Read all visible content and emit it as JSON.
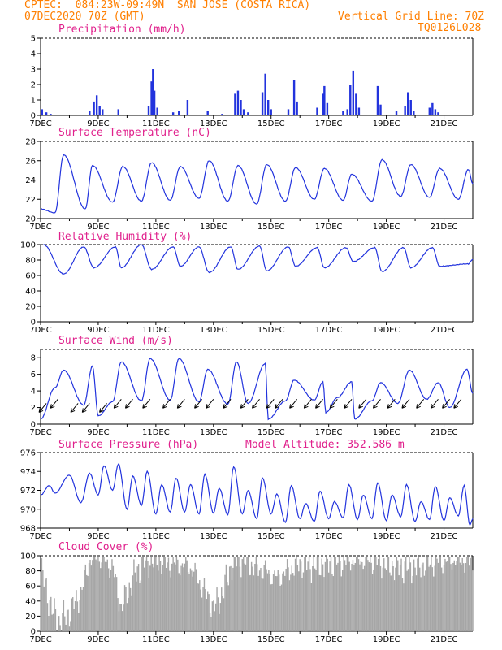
{
  "header": {
    "line1": "CPTEC:  084:23W-09:49N  SAN JOSE (COSTA RICA)",
    "line2_left": "07DEC2020 70Z (GMT)",
    "line2_right": "Vertical Grid Line: 70Z",
    "line3_right": "TQ0126L028"
  },
  "colors": {
    "header": "#ff7f00",
    "title": "#e0208c",
    "series": "#2233dd",
    "cloud": "#a6a6a6"
  },
  "chart_data": [
    {
      "type": "bar",
      "title": "Precipitation (mm/h)",
      "x_ticks": [
        "7DEC",
        "9DEC",
        "11DEC",
        "13DEC",
        "15DEC",
        "17DEC",
        "19DEC",
        "21DEC"
      ],
      "y_ticks": [
        0,
        1,
        2,
        3,
        4,
        5
      ],
      "ylim": [
        0,
        5
      ],
      "bars": [
        {
          "day": 7.05,
          "value": 0.4
        },
        {
          "day": 7.2,
          "value": 0.2
        },
        {
          "day": 7.35,
          "value": 0.1
        },
        {
          "day": 8.7,
          "value": 0.3
        },
        {
          "day": 8.85,
          "value": 0.9
        },
        {
          "day": 8.95,
          "value": 1.3
        },
        {
          "day": 9.05,
          "value": 0.6
        },
        {
          "day": 9.15,
          "value": 0.4
        },
        {
          "day": 9.7,
          "value": 0.4
        },
        {
          "day": 10.75,
          "value": 0.6
        },
        {
          "day": 10.85,
          "value": 2.2
        },
        {
          "day": 10.9,
          "value": 3.0
        },
        {
          "day": 10.95,
          "value": 1.6
        },
        {
          "day": 11.05,
          "value": 0.5
        },
        {
          "day": 11.6,
          "value": 0.2
        },
        {
          "day": 11.8,
          "value": 0.3
        },
        {
          "day": 12.1,
          "value": 1.0
        },
        {
          "day": 12.8,
          "value": 0.3
        },
        {
          "day": 13.3,
          "value": 0.1
        },
        {
          "day": 13.75,
          "value": 1.4
        },
        {
          "day": 13.85,
          "value": 1.6
        },
        {
          "day": 13.95,
          "value": 1.0
        },
        {
          "day": 14.05,
          "value": 0.4
        },
        {
          "day": 14.2,
          "value": 0.2
        },
        {
          "day": 14.7,
          "value": 1.5
        },
        {
          "day": 14.8,
          "value": 2.7
        },
        {
          "day": 14.9,
          "value": 1.0
        },
        {
          "day": 15.0,
          "value": 0.4
        },
        {
          "day": 15.6,
          "value": 0.4
        },
        {
          "day": 15.8,
          "value": 2.3
        },
        {
          "day": 15.9,
          "value": 0.9
        },
        {
          "day": 16.6,
          "value": 0.5
        },
        {
          "day": 16.8,
          "value": 1.4
        },
        {
          "day": 16.85,
          "value": 1.9
        },
        {
          "day": 16.95,
          "value": 0.8
        },
        {
          "day": 17.5,
          "value": 0.3
        },
        {
          "day": 17.65,
          "value": 0.4
        },
        {
          "day": 17.75,
          "value": 2.0
        },
        {
          "day": 17.85,
          "value": 2.9
        },
        {
          "day": 17.95,
          "value": 1.4
        },
        {
          "day": 18.05,
          "value": 0.5
        },
        {
          "day": 18.7,
          "value": 1.9
        },
        {
          "day": 18.8,
          "value": 0.7
        },
        {
          "day": 19.35,
          "value": 0.3
        },
        {
          "day": 19.65,
          "value": 0.6
        },
        {
          "day": 19.75,
          "value": 1.5
        },
        {
          "day": 19.85,
          "value": 1.0
        },
        {
          "day": 19.95,
          "value": 0.3
        },
        {
          "day": 20.5,
          "value": 0.5
        },
        {
          "day": 20.6,
          "value": 0.8
        },
        {
          "day": 20.7,
          "value": 0.4
        },
        {
          "day": 20.8,
          "value": 0.2
        }
      ]
    },
    {
      "type": "line",
      "title": "Surface Temperature (nC)",
      "x_ticks": [
        "7DEC",
        "9DEC",
        "11DEC",
        "13DEC",
        "15DEC",
        "17DEC",
        "19DEC",
        "21DEC"
      ],
      "y_ticks": [
        20,
        22,
        24,
        26,
        28
      ],
      "ylim": [
        20,
        28
      ],
      "peaks": [
        [
          7.8,
          26.6
        ],
        [
          8.8,
          25.5
        ],
        [
          9.85,
          25.4
        ],
        [
          10.85,
          25.8
        ],
        [
          11.85,
          25.4
        ],
        [
          12.85,
          26.0
        ],
        [
          13.85,
          25.5
        ],
        [
          14.85,
          25.6
        ],
        [
          15.85,
          25.3
        ],
        [
          16.85,
          25.2
        ],
        [
          17.8,
          24.6
        ],
        [
          18.85,
          26.1
        ],
        [
          19.85,
          25.6
        ],
        [
          20.85,
          25.2
        ],
        [
          21.85,
          25.1
        ]
      ],
      "troughs": [
        [
          7.0,
          21.0
        ],
        [
          7.5,
          20.6
        ],
        [
          8.55,
          21.0
        ],
        [
          9.5,
          21.7
        ],
        [
          10.5,
          21.8
        ],
        [
          11.5,
          21.9
        ],
        [
          12.5,
          22.1
        ],
        [
          13.5,
          21.8
        ],
        [
          14.5,
          21.5
        ],
        [
          15.5,
          21.8
        ],
        [
          16.5,
          22.0
        ],
        [
          17.5,
          21.9
        ],
        [
          18.5,
          21.8
        ],
        [
          19.5,
          22.3
        ],
        [
          20.5,
          22.2
        ],
        [
          21.5,
          22.0
        ],
        [
          22.0,
          23.6
        ]
      ]
    },
    {
      "type": "line",
      "title": "Relative Humidity (%)",
      "x_ticks": [
        "7DEC",
        "9DEC",
        "11DEC",
        "13DEC",
        "15DEC",
        "17DEC",
        "19DEC",
        "21DEC"
      ],
      "y_ticks": [
        0,
        20,
        40,
        60,
        80,
        100
      ],
      "ylim": [
        0,
        100
      ],
      "peaks": [
        [
          7.1,
          100
        ],
        [
          8.5,
          97
        ],
        [
          9.6,
          97
        ],
        [
          10.5,
          100
        ],
        [
          11.6,
          97
        ],
        [
          12.5,
          97
        ],
        [
          13.6,
          97
        ],
        [
          14.6,
          98
        ],
        [
          15.6,
          97
        ],
        [
          16.6,
          96
        ],
        [
          17.6,
          96
        ],
        [
          18.6,
          96
        ],
        [
          19.6,
          96
        ],
        [
          20.6,
          96
        ],
        [
          22.0,
          81
        ]
      ],
      "troughs": [
        [
          7.8,
          62
        ],
        [
          8.85,
          70
        ],
        [
          9.8,
          70
        ],
        [
          10.85,
          68
        ],
        [
          11.85,
          72
        ],
        [
          12.85,
          64
        ],
        [
          13.85,
          68
        ],
        [
          14.85,
          66
        ],
        [
          15.85,
          72
        ],
        [
          16.85,
          70
        ],
        [
          17.85,
          78
        ],
        [
          18.85,
          65
        ],
        [
          19.85,
          70
        ],
        [
          20.85,
          72
        ],
        [
          21.85,
          75
        ]
      ]
    },
    {
      "type": "line",
      "title": "Surface Wind (m/s)",
      "x_ticks": [
        "7DEC",
        "9DEC",
        "11DEC",
        "13DEC",
        "15DEC",
        "17DEC",
        "19DEC",
        "21DEC"
      ],
      "y_ticks": [
        0,
        2,
        4,
        6,
        8
      ],
      "ylim": [
        0,
        9
      ],
      "peaks": [
        [
          7.8,
          6.5
        ],
        [
          8.8,
          7.0
        ],
        [
          9.8,
          7.5
        ],
        [
          10.8,
          7.9
        ],
        [
          11.8,
          7.9
        ],
        [
          12.8,
          6.6
        ],
        [
          13.8,
          7.5
        ],
        [
          14.8,
          7.3
        ],
        [
          15.8,
          5.3
        ],
        [
          16.8,
          5.1
        ],
        [
          17.8,
          5.1
        ],
        [
          18.8,
          5.0
        ],
        [
          19.8,
          6.5
        ],
        [
          20.8,
          5.0
        ],
        [
          21.8,
          6.6
        ]
      ],
      "troughs": [
        [
          7.0,
          0.6
        ],
        [
          7.5,
          4.4
        ],
        [
          8.5,
          2.3
        ],
        [
          9.0,
          1.0
        ],
        [
          9.5,
          2.7
        ],
        [
          10.5,
          2.8
        ],
        [
          11.5,
          2.9
        ],
        [
          12.5,
          2.7
        ],
        [
          13.5,
          2.4
        ],
        [
          14.2,
          2.5
        ],
        [
          14.9,
          0.6
        ],
        [
          15.5,
          2.8
        ],
        [
          16.5,
          2.9
        ],
        [
          16.9,
          1.4
        ],
        [
          17.3,
          3.2
        ],
        [
          17.9,
          0.6
        ],
        [
          18.5,
          2.8
        ],
        [
          19.4,
          2.5
        ],
        [
          20.4,
          3.0
        ],
        [
          21.2,
          2.0
        ],
        [
          22.0,
          3.7
        ]
      ],
      "arrows": [
        [
          7.2,
          2.5
        ],
        [
          7.6,
          3.0
        ],
        [
          8.3,
          2.5
        ],
        [
          8.7,
          2.5
        ],
        [
          9.3,
          2.5
        ],
        [
          9.8,
          3.0
        ],
        [
          10.2,
          3.0
        ],
        [
          10.8,
          3.0
        ],
        [
          11.5,
          3.0
        ],
        [
          12.0,
          3.0
        ],
        [
          12.6,
          3.0
        ],
        [
          13.0,
          3.0
        ],
        [
          13.6,
          3.0
        ],
        [
          14.2,
          3.0
        ],
        [
          14.6,
          3.0
        ],
        [
          15.1,
          3.0
        ],
        [
          15.4,
          3.0
        ],
        [
          15.9,
          3.0
        ],
        [
          16.4,
          3.0
        ],
        [
          16.8,
          3.0
        ],
        [
          17.3,
          3.0
        ],
        [
          17.8,
          3.0
        ],
        [
          18.3,
          3.0
        ],
        [
          18.8,
          3.0
        ],
        [
          19.3,
          3.0
        ],
        [
          19.8,
          3.0
        ],
        [
          20.3,
          3.0
        ],
        [
          20.8,
          3.0
        ],
        [
          21.2,
          3.0
        ],
        [
          21.6,
          3.0
        ]
      ]
    },
    {
      "type": "line",
      "title": "Surface Pressure (hPa)",
      "annotation": "Model Altitude: 352.586 m",
      "x_ticks": [
        "7DEC",
        "9DEC",
        "11DEC",
        "13DEC",
        "15DEC",
        "17DEC",
        "19DEC",
        "21DEC"
      ],
      "y_ticks": [
        968,
        970,
        972,
        974,
        976
      ],
      "ylim": [
        968,
        976
      ],
      "peaks": [
        [
          7.3,
          972.5
        ],
        [
          8.0,
          973.6
        ],
        [
          8.7,
          973.8
        ],
        [
          9.2,
          974.6
        ],
        [
          9.7,
          974.8
        ],
        [
          10.2,
          973.5
        ],
        [
          10.7,
          974.0
        ],
        [
          11.2,
          972.6
        ],
        [
          11.7,
          973.3
        ],
        [
          12.2,
          972.6
        ],
        [
          12.7,
          973.7
        ],
        [
          13.2,
          972.2
        ],
        [
          13.7,
          974.5
        ],
        [
          14.2,
          972.0
        ],
        [
          14.7,
          973.3
        ],
        [
          15.2,
          971.6
        ],
        [
          15.7,
          972.5
        ],
        [
          16.2,
          970.6
        ],
        [
          16.7,
          971.9
        ],
        [
          17.2,
          970.8
        ],
        [
          17.7,
          972.6
        ],
        [
          18.2,
          971.5
        ],
        [
          18.7,
          972.8
        ],
        [
          19.2,
          971.5
        ],
        [
          19.7,
          972.6
        ],
        [
          20.2,
          970.8
        ],
        [
          20.7,
          972.4
        ],
        [
          21.2,
          971.2
        ],
        [
          21.7,
          972.5
        ]
      ],
      "troughs": [
        [
          7.0,
          971.5
        ],
        [
          7.5,
          971.7
        ],
        [
          8.4,
          970.7
        ],
        [
          9.0,
          971.5
        ],
        [
          9.5,
          972.0
        ],
        [
          10.0,
          970.0
        ],
        [
          10.5,
          970.4
        ],
        [
          11.0,
          969.5
        ],
        [
          11.5,
          969.7
        ],
        [
          12.0,
          969.7
        ],
        [
          12.5,
          969.5
        ],
        [
          13.0,
          969.6
        ],
        [
          13.5,
          969.4
        ],
        [
          14.0,
          969.5
        ],
        [
          14.5,
          969.0
        ],
        [
          15.0,
          969.5
        ],
        [
          15.5,
          968.6
        ],
        [
          16.0,
          969.0
        ],
        [
          16.5,
          968.7
        ],
        [
          17.0,
          969.0
        ],
        [
          17.5,
          969.1
        ],
        [
          18.0,
          968.9
        ],
        [
          18.5,
          969.0
        ],
        [
          19.0,
          968.8
        ],
        [
          19.5,
          969.2
        ],
        [
          20.0,
          968.7
        ],
        [
          20.5,
          968.9
        ],
        [
          21.0,
          968.8
        ],
        [
          21.5,
          969.3
        ],
        [
          21.9,
          968.3
        ],
        [
          22.0,
          969.0
        ]
      ]
    },
    {
      "type": "area",
      "title": "Cloud Cover (%)",
      "x_ticks": [
        "7DEC",
        "9DEC",
        "11DEC",
        "13DEC",
        "15DEC",
        "17DEC",
        "19DEC",
        "21DEC"
      ],
      "y_ticks": [
        0,
        20,
        40,
        60,
        80,
        100
      ],
      "ylim": [
        0,
        100
      ],
      "profile": [
        [
          7.0,
          85
        ],
        [
          7.3,
          40
        ],
        [
          7.6,
          10
        ],
        [
          8.0,
          25
        ],
        [
          8.4,
          50
        ],
        [
          8.7,
          95
        ],
        [
          9.0,
          98
        ],
        [
          9.5,
          85
        ],
        [
          9.8,
          30
        ],
        [
          10.2,
          70
        ],
        [
          10.6,
          92
        ],
        [
          11.0,
          95
        ],
        [
          11.4,
          90
        ],
        [
          11.8,
          88
        ],
        [
          12.2,
          85
        ],
        [
          12.6,
          60
        ],
        [
          13.0,
          30
        ],
        [
          13.3,
          50
        ],
        [
          13.7,
          95
        ],
        [
          14.0,
          95
        ],
        [
          14.4,
          85
        ],
        [
          14.8,
          80
        ],
        [
          15.2,
          70
        ],
        [
          15.6,
          80
        ],
        [
          16.0,
          90
        ],
        [
          16.5,
          88
        ],
        [
          17.0,
          90
        ],
        [
          17.5,
          92
        ],
        [
          18.0,
          95
        ],
        [
          18.5,
          92
        ],
        [
          19.0,
          88
        ],
        [
          19.5,
          85
        ],
        [
          20.0,
          85
        ],
        [
          20.5,
          90
        ],
        [
          21.0,
          92
        ],
        [
          21.5,
          95
        ],
        [
          22.0,
          92
        ]
      ]
    }
  ]
}
